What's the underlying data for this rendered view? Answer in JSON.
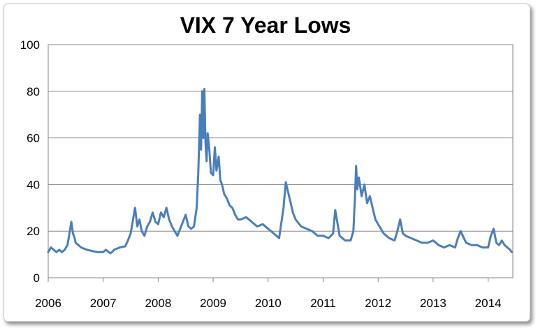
{
  "chart_data": {
    "type": "line",
    "title": "VIX 7 Year Lows",
    "xlabel": "",
    "ylabel": "",
    "ylim": [
      0,
      100
    ],
    "xlim": [
      2006,
      2014.45
    ],
    "y_ticks": [
      0,
      20,
      40,
      60,
      80,
      100
    ],
    "x_ticks": [
      2006,
      2007,
      2008,
      2009,
      2010,
      2011,
      2012,
      2013,
      2014
    ],
    "x_tick_labels": [
      "2006",
      "2007",
      "2008",
      "2009",
      "2010",
      "2011",
      "2012",
      "2013",
      "2014"
    ],
    "grid": "horizontal",
    "legend": "none",
    "series_color": "#4a7ebb",
    "series": [
      {
        "x": [
          2006.0,
          2006.05,
          2006.1,
          2006.15,
          2006.2,
          2006.25,
          2006.3,
          2006.35,
          2006.38,
          2006.42,
          2006.45,
          2006.48,
          2006.5,
          2006.55,
          2006.6,
          2006.7,
          2006.8,
          2006.9,
          2007.0,
          2007.05,
          2007.1,
          2007.13,
          2007.16,
          2007.2,
          2007.3,
          2007.4,
          2007.45,
          2007.5,
          2007.55,
          2007.58,
          2007.62,
          2007.66,
          2007.7,
          2007.75,
          2007.8,
          2007.85,
          2007.9,
          2007.95,
          2008.0,
          2008.05,
          2008.1,
          2008.15,
          2008.2,
          2008.25,
          2008.3,
          2008.35,
          2008.4,
          2008.45,
          2008.5,
          2008.55,
          2008.6,
          2008.65,
          2008.7,
          2008.73,
          2008.76,
          2008.78,
          2008.8,
          2008.82,
          2008.84,
          2008.86,
          2008.88,
          2008.9,
          2008.93,
          2008.96,
          2009.0,
          2009.03,
          2009.06,
          2009.1,
          2009.13,
          2009.16,
          2009.2,
          2009.25,
          2009.3,
          2009.35,
          2009.4,
          2009.45,
          2009.5,
          2009.6,
          2009.7,
          2009.8,
          2009.9,
          2010.0,
          2010.1,
          2010.2,
          2010.28,
          2010.32,
          2010.35,
          2010.4,
          2010.45,
          2010.5,
          2010.6,
          2010.7,
          2010.8,
          2010.9,
          2011.0,
          2011.1,
          2011.18,
          2011.22,
          2011.3,
          2011.4,
          2011.5,
          2011.55,
          2011.58,
          2011.6,
          2011.62,
          2011.65,
          2011.7,
          2011.75,
          2011.8,
          2011.85,
          2011.9,
          2011.95,
          2012.0,
          2012.05,
          2012.1,
          2012.2,
          2012.3,
          2012.35,
          2012.4,
          2012.45,
          2012.5,
          2012.6,
          2012.7,
          2012.8,
          2012.9,
          2013.0,
          2013.1,
          2013.2,
          2013.3,
          2013.4,
          2013.45,
          2013.5,
          2013.6,
          2013.7,
          2013.8,
          2013.9,
          2014.0,
          2014.05,
          2014.1,
          2014.15,
          2014.2,
          2014.25,
          2014.3,
          2014.35,
          2014.4,
          2014.43
        ],
        "values": [
          11,
          13,
          12,
          11,
          12,
          11,
          12,
          14,
          18,
          24,
          19,
          17,
          15,
          14,
          13,
          12,
          11.5,
          11,
          11,
          12,
          11,
          10.5,
          11,
          12,
          13,
          13.5,
          16,
          19,
          26,
          30,
          22,
          25,
          20,
          18,
          22,
          24,
          28,
          24,
          23,
          28,
          26,
          30,
          25,
          22,
          20,
          18,
          21,
          24,
          27,
          22,
          21,
          22,
          30,
          45,
          70,
          55,
          80,
          60,
          81,
          58,
          50,
          62,
          55,
          45,
          44,
          56,
          46,
          52,
          42,
          40,
          36,
          34,
          31,
          30,
          27,
          25,
          25,
          26,
          24,
          22,
          23,
          21,
          19,
          17,
          30,
          41,
          38,
          33,
          28,
          25,
          22,
          21,
          20,
          18,
          18,
          17,
          19,
          29,
          18,
          16,
          16,
          20,
          35,
          48,
          38,
          43,
          35,
          40,
          32,
          35,
          30,
          25,
          23,
          21,
          19,
          17,
          16,
          20,
          25,
          19,
          18,
          17,
          16,
          15,
          15,
          16,
          14,
          13,
          14,
          13,
          17,
          20,
          15,
          14,
          14,
          13,
          13,
          18,
          21,
          15,
          14,
          16,
          14,
          13,
          12,
          11
        ]
      }
    ]
  }
}
